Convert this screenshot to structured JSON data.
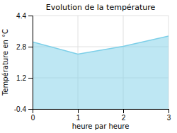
{
  "chart_data": {
    "type": "area",
    "title": "Evolution de la température",
    "xlabel": "heure par heure",
    "ylabel": "Température en °C",
    "x": [
      0,
      1,
      2,
      3
    ],
    "values": [
      3.05,
      2.42,
      2.82,
      3.35
    ],
    "color": "#7dcfe8",
    "xlim": [
      0,
      3
    ],
    "ylim": [
      -0.4,
      4.4
    ],
    "xticks": [
      0,
      1,
      2,
      3
    ],
    "yticks": [
      -0.4,
      1.2,
      2.8,
      4.4
    ],
    "grid": true
  }
}
